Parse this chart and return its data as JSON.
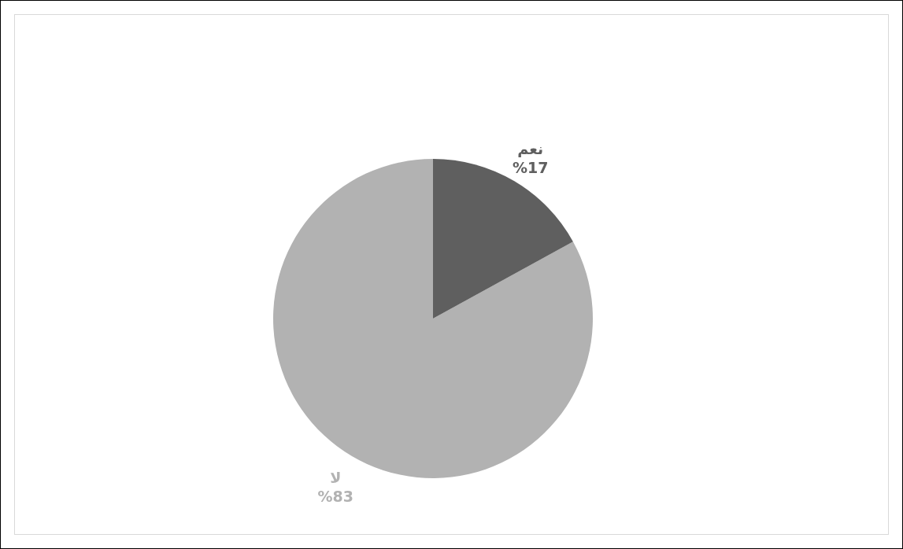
{
  "chart_data": {
    "type": "pie",
    "categories": [
      "نعم",
      "لا"
    ],
    "values": [
      17,
      83
    ],
    "colors": [
      "#5f5f5f",
      "#b2b2b2"
    ],
    "value_labels": [
      "%17",
      "%83"
    ]
  }
}
